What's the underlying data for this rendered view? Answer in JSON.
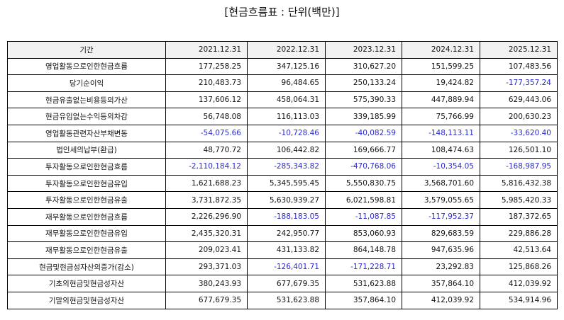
{
  "title": "[현금흐름표 : 단위(백만)]",
  "columns": [
    "기간",
    "2021.12.31",
    "2022.12.31",
    "2023.12.31",
    "2024.12.31",
    "2025.12.31"
  ],
  "rows": [
    {
      "label": "영업활동으로인한현금흐름",
      "values": [
        "177,258.25",
        "347,125.16",
        "310,627.20",
        "151,599.25",
        "107,483.56"
      ]
    },
    {
      "label": "당기순이익",
      "values": [
        "210,483.73",
        "96,484.65",
        "250,133.24",
        "19,424.82",
        "-177,357.24"
      ]
    },
    {
      "label": "현금유출없는비용등의가산",
      "values": [
        "137,606.12",
        "458,064.31",
        "575,390.33",
        "447,889.94",
        "629,443.06"
      ]
    },
    {
      "label": "현금유입없는수익등의차감",
      "values": [
        "56,748.08",
        "116,113.03",
        "339,185.99",
        "75,766.99",
        "200,630.23"
      ]
    },
    {
      "label": "영업활동관련자산부채변동",
      "values": [
        "-54,075.66",
        "-10,728.46",
        "-40,082.59",
        "-148,113.11",
        "-33,620.40"
      ]
    },
    {
      "label": "법인세의납부(환급)",
      "values": [
        "48,770.72",
        "106,442.82",
        "169,666.77",
        "108,474.63",
        "126,501.10"
      ]
    },
    {
      "label": "투자활동으로인한현금흐름",
      "values": [
        "-2,110,184.12",
        "-285,343.82",
        "-470,768.06",
        "-10,354.05",
        "-168,987.95"
      ]
    },
    {
      "label": "투자활동으로인한현금유입",
      "values": [
        "1,621,688.23",
        "5,345,595.45",
        "5,550,830.75",
        "3,568,701.60",
        "5,816,432.38"
      ]
    },
    {
      "label": "투자활동으로인한현금유출",
      "values": [
        "3,731,872.35",
        "5,630,939.27",
        "6,021,598.81",
        "3,579,055.65",
        "5,985,420.33"
      ]
    },
    {
      "label": "재무활동으로인한현금흐름",
      "values": [
        "2,226,296.90",
        "-188,183.05",
        "-11,087.85",
        "-117,952.37",
        "187,372.65"
      ]
    },
    {
      "label": "재무활동으로인한현금유입",
      "values": [
        "2,435,320.31",
        "242,950.77",
        "853,060.93",
        "829,683.59",
        "229,886.28"
      ]
    },
    {
      "label": "재무활동으로인한현금유출",
      "values": [
        "209,023.41",
        "431,133.82",
        "864,148.78",
        "947,635.96",
        "42,513.64"
      ]
    },
    {
      "label": "현금및현금성자산의증가(감소)",
      "values": [
        "293,371.03",
        "-126,401.71",
        "-171,228.71",
        "23,292.83",
        "125,868.26"
      ]
    },
    {
      "label": "기초의현금및현금성자산",
      "values": [
        "380,243.93",
        "677,679.35",
        "531,623.88",
        "357,864.10",
        "412,039.92"
      ]
    },
    {
      "label": "기말의현금및현금성자산",
      "values": [
        "677,679.35",
        "531,623.88",
        "357,864.10",
        "412,039.92",
        "534,914.96"
      ]
    }
  ],
  "colors": {
    "negative": "#2a2acc",
    "header_bg": "#f2f2f2"
  }
}
